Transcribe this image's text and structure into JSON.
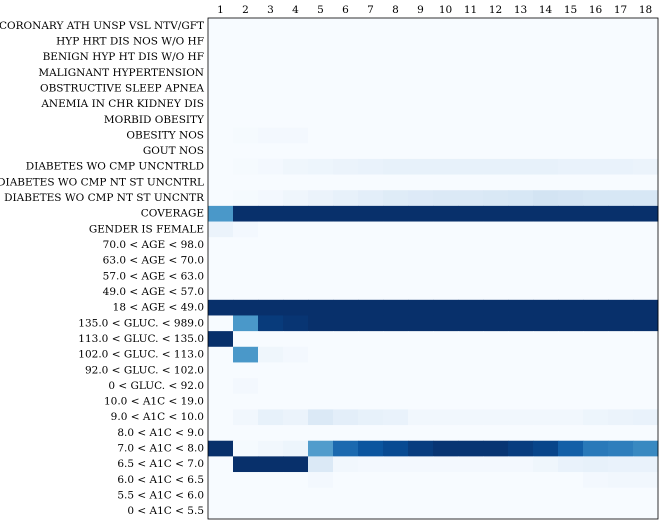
{
  "chart_data": {
    "type": "heatmap",
    "title": "",
    "xlabel": "",
    "ylabel": "",
    "x_categories": [
      "1",
      "2",
      "3",
      "4",
      "5",
      "6",
      "7",
      "8",
      "9",
      "10",
      "11",
      "12",
      "13",
      "14",
      "15",
      "16",
      "17",
      "18"
    ],
    "y_categories": [
      "CORONARY ATH UNSP VSL NTV/GFT",
      "HYP HRT DIS NOS W/O HF",
      "BENIGN HYP HT DIS W/O HF",
      "MALIGNANT HYPERTENSION",
      "OBSTRUCTIVE SLEEP APNEA",
      "ANEMIA IN CHR KIDNEY DIS",
      "MORBID OBESITY",
      "OBESITY NOS",
      "GOUT NOS",
      "DIABETES WO CMP UNCNTRLD",
      "DIABETES WO CMP NT ST UNCNTRL",
      "DIABETES WO CMP NT ST UNCNTR",
      "COVERAGE",
      "GENDER IS FEMALE",
      "70.0 < AGE < 98.0",
      "63.0 < AGE < 70.0",
      "57.0 < AGE < 63.0",
      "49.0 < AGE < 57.0",
      "18 < AGE < 49.0",
      "135.0 < GLUC. < 989.0",
      "113.0 < GLUC. < 135.0",
      "102.0 < GLUC. < 113.0",
      "92.0 < GLUC. < 102.0",
      "0 < GLUC. < 92.0",
      "10.0 < A1C < 19.0",
      "9.0 < A1C < 10.0",
      "8.0 < A1C < 9.0",
      "7.0 < A1C < 8.0",
      "6.5 < A1C < 7.0",
      "6.0 < A1C < 6.5",
      "5.5 < A1C < 6.0",
      "0 < A1C < 5.5"
    ],
    "colormap": [
      "#f7fbff",
      "#deebf7",
      "#c6dbef",
      "#9ecae1",
      "#6baed6",
      "#4292c6",
      "#2171b5",
      "#08519c",
      "#08306b"
    ],
    "value_range": [
      0,
      1
    ],
    "values": [
      [
        0.0,
        0.0,
        0.0,
        0.0,
        0.0,
        0.0,
        0.0,
        0.0,
        0.0,
        0.0,
        0.0,
        0.0,
        0.0,
        0.0,
        0.0,
        0.0,
        0.0,
        0.0
      ],
      [
        0.0,
        0.0,
        0.0,
        0.0,
        0.0,
        0.0,
        0.0,
        0.0,
        0.0,
        0.0,
        0.0,
        0.0,
        0.0,
        0.0,
        0.0,
        0.0,
        0.0,
        0.0
      ],
      [
        0.0,
        0.0,
        0.0,
        0.0,
        0.0,
        0.0,
        0.0,
        0.0,
        0.0,
        0.0,
        0.0,
        0.0,
        0.0,
        0.0,
        0.0,
        0.0,
        0.0,
        0.0
      ],
      [
        0.0,
        0.0,
        0.0,
        0.0,
        0.0,
        0.0,
        0.0,
        0.0,
        0.0,
        0.0,
        0.0,
        0.0,
        0.0,
        0.0,
        0.0,
        0.0,
        0.0,
        0.0
      ],
      [
        0.0,
        0.0,
        0.0,
        0.0,
        0.0,
        0.0,
        0.0,
        0.0,
        0.0,
        0.0,
        0.0,
        0.0,
        0.0,
        0.0,
        0.0,
        0.0,
        0.0,
        0.0
      ],
      [
        0.0,
        0.0,
        0.0,
        0.0,
        0.0,
        0.0,
        0.0,
        0.0,
        0.0,
        0.0,
        0.0,
        0.0,
        0.0,
        0.0,
        0.0,
        0.0,
        0.0,
        0.0
      ],
      [
        0.0,
        0.0,
        0.0,
        0.0,
        0.0,
        0.0,
        0.0,
        0.0,
        0.0,
        0.0,
        0.0,
        0.0,
        0.0,
        0.0,
        0.0,
        0.0,
        0.0,
        0.0
      ],
      [
        0.0,
        0.01,
        0.02,
        0.02,
        0.0,
        0.0,
        0.0,
        0.0,
        0.0,
        0.0,
        0.0,
        0.0,
        0.0,
        0.0,
        0.0,
        0.0,
        0.0,
        0.0
      ],
      [
        0.0,
        0.0,
        0.0,
        0.0,
        0.0,
        0.0,
        0.0,
        0.0,
        0.0,
        0.0,
        0.0,
        0.0,
        0.0,
        0.0,
        0.0,
        0.0,
        0.0,
        0.0
      ],
      [
        0.0,
        0.01,
        0.02,
        0.04,
        0.05,
        0.06,
        0.07,
        0.08,
        0.08,
        0.08,
        0.08,
        0.08,
        0.08,
        0.08,
        0.07,
        0.07,
        0.07,
        0.06
      ],
      [
        0.0,
        0.0,
        0.0,
        0.0,
        0.0,
        0.0,
        0.0,
        0.0,
        0.0,
        0.0,
        0.0,
        0.0,
        0.0,
        0.0,
        0.0,
        0.0,
        0.0,
        0.0
      ],
      [
        0.0,
        0.01,
        0.02,
        0.04,
        0.06,
        0.08,
        0.1,
        0.12,
        0.13,
        0.14,
        0.14,
        0.15,
        0.16,
        0.18,
        0.17,
        0.16,
        0.16,
        0.16
      ],
      [
        0.6,
        1.0,
        1.0,
        1.0,
        1.0,
        1.0,
        1.0,
        1.0,
        1.0,
        1.0,
        1.0,
        1.0,
        1.0,
        1.0,
        1.0,
        1.0,
        1.0,
        1.0
      ],
      [
        0.06,
        0.02,
        0.0,
        0.0,
        0.0,
        0.0,
        0.0,
        0.0,
        0.0,
        0.0,
        0.0,
        0.0,
        0.0,
        0.0,
        0.0,
        0.0,
        0.0,
        0.0
      ],
      [
        0.0,
        0.0,
        0.0,
        0.0,
        0.0,
        0.0,
        0.0,
        0.0,
        0.0,
        0.0,
        0.0,
        0.0,
        0.0,
        0.0,
        0.0,
        0.0,
        0.0,
        0.0
      ],
      [
        0.0,
        0.0,
        0.0,
        0.0,
        0.0,
        0.0,
        0.0,
        0.0,
        0.0,
        0.0,
        0.0,
        0.0,
        0.0,
        0.0,
        0.0,
        0.0,
        0.0,
        0.0
      ],
      [
        0.0,
        0.0,
        0.0,
        0.0,
        0.0,
        0.0,
        0.0,
        0.0,
        0.0,
        0.0,
        0.0,
        0.0,
        0.0,
        0.0,
        0.0,
        0.0,
        0.0,
        0.0
      ],
      [
        0.0,
        0.0,
        0.0,
        0.0,
        0.0,
        0.0,
        0.0,
        0.0,
        0.0,
        0.0,
        0.0,
        0.0,
        0.0,
        0.0,
        0.0,
        0.0,
        0.0,
        0.0
      ],
      [
        1.0,
        1.0,
        1.0,
        1.0,
        1.0,
        1.0,
        1.0,
        1.0,
        1.0,
        1.0,
        1.0,
        1.0,
        1.0,
        1.0,
        1.0,
        1.0,
        1.0,
        1.0
      ],
      [
        0.0,
        0.6,
        0.96,
        0.98,
        1.0,
        1.0,
        1.0,
        1.0,
        1.0,
        1.0,
        1.0,
        1.0,
        1.0,
        1.0,
        1.0,
        1.0,
        1.0,
        1.0
      ],
      [
        1.0,
        0.0,
        0.0,
        0.0,
        0.0,
        0.0,
        0.0,
        0.0,
        0.0,
        0.0,
        0.0,
        0.0,
        0.0,
        0.0,
        0.0,
        0.0,
        0.0,
        0.0
      ],
      [
        0.0,
        0.6,
        0.04,
        0.02,
        0.0,
        0.0,
        0.0,
        0.0,
        0.0,
        0.0,
        0.0,
        0.0,
        0.0,
        0.0,
        0.0,
        0.0,
        0.0,
        0.0
      ],
      [
        0.0,
        0.0,
        0.0,
        0.0,
        0.0,
        0.0,
        0.0,
        0.0,
        0.0,
        0.0,
        0.0,
        0.0,
        0.0,
        0.0,
        0.0,
        0.0,
        0.0,
        0.0
      ],
      [
        0.0,
        0.02,
        0.0,
        0.0,
        0.0,
        0.0,
        0.0,
        0.0,
        0.0,
        0.0,
        0.0,
        0.0,
        0.0,
        0.0,
        0.0,
        0.0,
        0.0,
        0.0
      ],
      [
        0.0,
        0.0,
        0.0,
        0.0,
        0.0,
        0.0,
        0.0,
        0.0,
        0.0,
        0.0,
        0.0,
        0.0,
        0.0,
        0.0,
        0.0,
        0.0,
        0.0,
        0.0
      ],
      [
        0.0,
        0.03,
        0.08,
        0.06,
        0.14,
        0.1,
        0.08,
        0.07,
        0.03,
        0.03,
        0.03,
        0.03,
        0.03,
        0.03,
        0.03,
        0.05,
        0.06,
        0.07
      ],
      [
        0.0,
        0.0,
        0.0,
        0.0,
        0.0,
        0.0,
        0.0,
        0.0,
        0.0,
        0.0,
        0.0,
        0.0,
        0.0,
        0.0,
        0.0,
        0.0,
        0.0,
        0.0
      ],
      [
        1.0,
        0.01,
        0.03,
        0.05,
        0.58,
        0.78,
        0.86,
        0.9,
        0.95,
        0.98,
        0.98,
        0.98,
        0.95,
        0.92,
        0.82,
        0.72,
        0.7,
        0.66
      ],
      [
        0.0,
        1.0,
        1.0,
        1.0,
        0.14,
        0.03,
        0.02,
        0.02,
        0.02,
        0.02,
        0.02,
        0.02,
        0.02,
        0.04,
        0.07,
        0.08,
        0.07,
        0.07
      ],
      [
        0.0,
        0.0,
        0.0,
        0.0,
        0.02,
        0.0,
        0.0,
        0.0,
        0.0,
        0.0,
        0.0,
        0.0,
        0.0,
        0.0,
        0.0,
        0.02,
        0.03,
        0.03
      ],
      [
        0.0,
        0.0,
        0.0,
        0.0,
        0.0,
        0.0,
        0.0,
        0.0,
        0.0,
        0.0,
        0.0,
        0.0,
        0.0,
        0.0,
        0.0,
        0.0,
        0.0,
        0.0
      ],
      [
        0.0,
        0.0,
        0.0,
        0.0,
        0.0,
        0.0,
        0.0,
        0.0,
        0.0,
        0.0,
        0.0,
        0.0,
        0.0,
        0.0,
        0.0,
        0.0,
        0.0,
        0.0
      ]
    ]
  }
}
